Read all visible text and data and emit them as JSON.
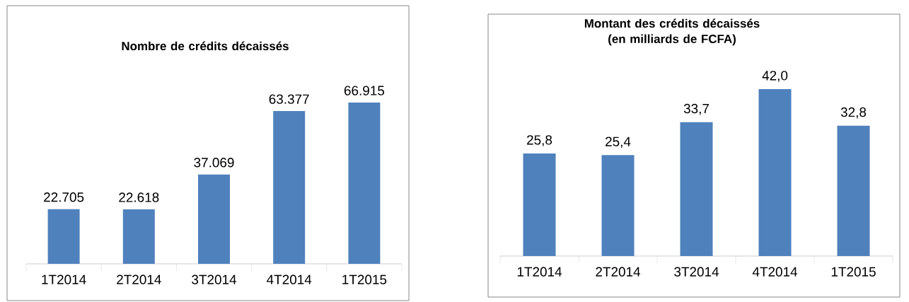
{
  "chart_data": [
    {
      "type": "bar",
      "title": "Nombre de crédits décaissés",
      "categories": [
        "1T2014",
        "2T2014",
        "3T2014",
        "4T2014",
        "1T2015"
      ],
      "values": [
        22705,
        22618,
        37069,
        63377,
        66915
      ],
      "value_labels": [
        "22.705",
        "22.618",
        "37.069",
        "63.377",
        "66.915"
      ],
      "color": "#4f81bd"
    },
    {
      "type": "bar",
      "title": "Montant des crédits décaissés (en milliards de FCFA)",
      "categories": [
        "1T2014",
        "2T2014",
        "3T2014",
        "4T2014",
        "1T2015"
      ],
      "values": [
        25.8,
        25.4,
        33.7,
        42.0,
        32.8
      ],
      "value_labels": [
        "25,8",
        "25,4",
        "33,7",
        "42,0",
        "32,8"
      ],
      "color": "#4f81bd"
    }
  ]
}
